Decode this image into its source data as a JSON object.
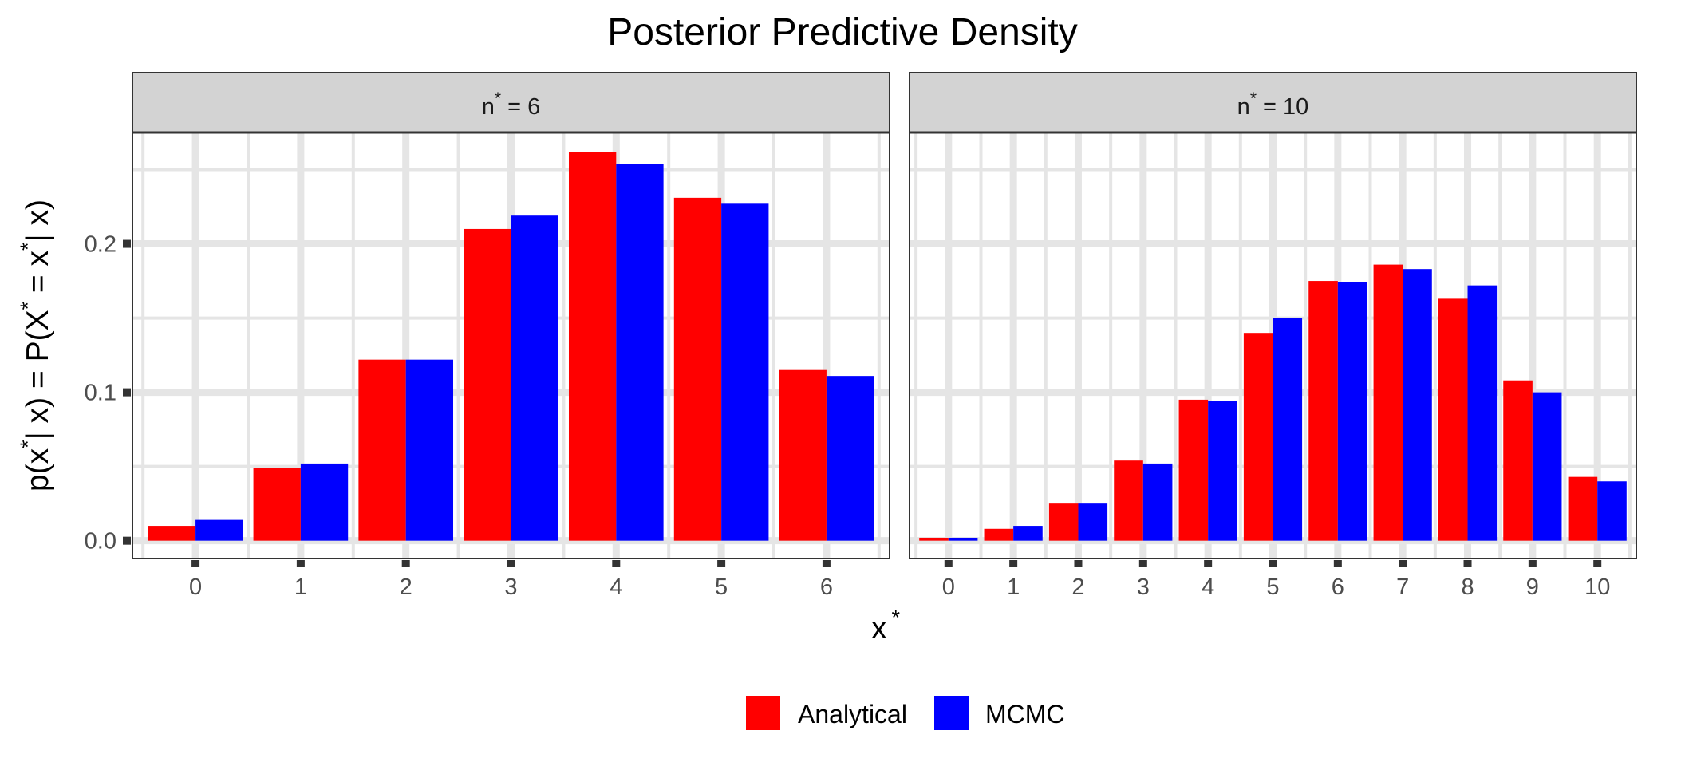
{
  "chart_data": {
    "type": "bar",
    "title": "Posterior Predictive Density",
    "xlabel": {
      "base": "x",
      "sup": "*"
    },
    "ylabel": {
      "parts": [
        {
          "text": "p(x",
          "sup": false
        },
        {
          "text": "*",
          "sup": true
        },
        {
          "text": "|  x) = P(X",
          "sup": false
        },
        {
          "text": "*",
          "sup": true
        },
        {
          "text": " = x",
          "sup": false
        },
        {
          "text": "*",
          "sup": true
        },
        {
          "text": "|  x)",
          "sup": false
        }
      ]
    },
    "ylim": [
      -0.012,
      0.275
    ],
    "yticks": [
      0.0,
      0.1,
      0.2
    ],
    "ytick_labels": [
      "0.0",
      "0.1",
      "0.2"
    ],
    "grid": true,
    "legend": {
      "position": "bottom",
      "items": [
        {
          "name": "Analytical",
          "color": "#FF0000"
        },
        {
          "name": "MCMC",
          "color": "#0000FF"
        }
      ]
    },
    "panels": [
      {
        "strip": {
          "base": "n",
          "sup": "*",
          "rest": " = 6"
        },
        "categories": [
          "0",
          "1",
          "2",
          "3",
          "4",
          "5",
          "6"
        ],
        "series": [
          {
            "name": "Analytical",
            "values": [
              0.01,
              0.049,
              0.122,
              0.21,
              0.262,
              0.231,
              0.115
            ]
          },
          {
            "name": "MCMC",
            "values": [
              0.014,
              0.052,
              0.122,
              0.219,
              0.254,
              0.227,
              0.111
            ]
          }
        ]
      },
      {
        "strip": {
          "base": "n",
          "sup": "*",
          "rest": " = 10"
        },
        "categories": [
          "0",
          "1",
          "2",
          "3",
          "4",
          "5",
          "6",
          "7",
          "8",
          "9",
          "10"
        ],
        "series": [
          {
            "name": "Analytical",
            "values": [
              0.002,
              0.008,
              0.025,
              0.054,
              0.095,
              0.14,
              0.175,
              0.186,
              0.163,
              0.108,
              0.043
            ]
          },
          {
            "name": "MCMC",
            "values": [
              0.002,
              0.01,
              0.025,
              0.052,
              0.094,
              0.15,
              0.174,
              0.183,
              0.172,
              0.1,
              0.04
            ]
          }
        ]
      }
    ]
  }
}
